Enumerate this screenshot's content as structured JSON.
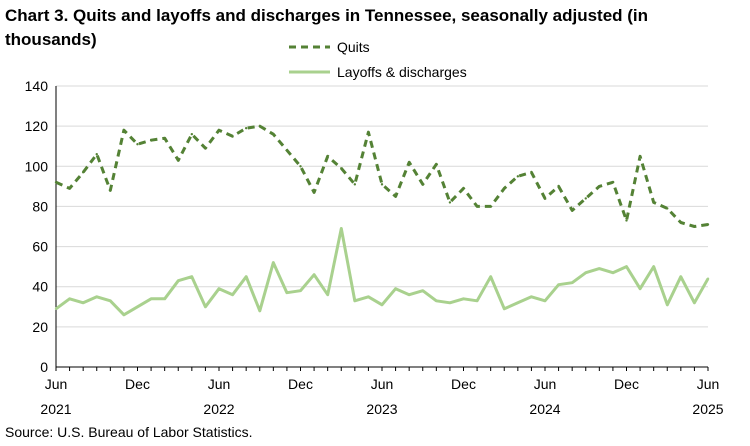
{
  "title": "Chart 3. Quits and layoffs and discharges in Tennessee, seasonally adjusted (in thousands)",
  "source": "Source: U.S. Bureau of Labor Statistics.",
  "chart_data": {
    "type": "line",
    "title": "Chart 3. Quits and layoffs and discharges in Tennessee, seasonally adjusted (in thousands)",
    "xlabel": "",
    "ylabel": "",
    "ylim": [
      0,
      140
    ],
    "yticks": [
      "0",
      "20",
      "40",
      "60",
      "80",
      "100",
      "120",
      "140"
    ],
    "grid": "horizontal",
    "legend": "top-center",
    "x_tick_labels": [
      {
        "month": "Jun",
        "year": "2021"
      },
      {
        "month": "Dec",
        "year": ""
      },
      {
        "month": "Jun",
        "year": "2022"
      },
      {
        "month": "Dec",
        "year": ""
      },
      {
        "month": "Jun",
        "year": "2023"
      },
      {
        "month": "Dec",
        "year": ""
      },
      {
        "month": "Jun",
        "year": "2024"
      },
      {
        "month": "Dec",
        "year": ""
      },
      {
        "month": "Jun",
        "year": "2025"
      }
    ],
    "x": [
      "2021-06",
      "2021-07",
      "2021-08",
      "2021-09",
      "2021-10",
      "2021-11",
      "2021-12",
      "2022-01",
      "2022-02",
      "2022-03",
      "2022-04",
      "2022-05",
      "2022-06",
      "2022-07",
      "2022-08",
      "2022-09",
      "2022-10",
      "2022-11",
      "2022-12",
      "2023-01",
      "2023-02",
      "2023-03",
      "2023-04",
      "2023-05",
      "2023-06",
      "2023-07",
      "2023-08",
      "2023-09",
      "2023-10",
      "2023-11",
      "2023-12",
      "2024-01",
      "2024-02",
      "2024-03",
      "2024-04",
      "2024-05",
      "2024-06",
      "2024-07",
      "2024-08",
      "2024-09",
      "2024-10",
      "2024-11",
      "2024-12",
      "2025-01",
      "2025-02",
      "2025-03",
      "2025-04",
      "2025-05",
      "2025-06"
    ],
    "series": [
      {
        "name": "Quits",
        "color": "#548235",
        "style": "dashed",
        "values": [
          92,
          89,
          97,
          106,
          88,
          118,
          111,
          113,
          114,
          103,
          116,
          109,
          118,
          115,
          119,
          120,
          116,
          108,
          100,
          87,
          105,
          99,
          91,
          117,
          91,
          85,
          102,
          91,
          101,
          82,
          89,
          80,
          80,
          89,
          95,
          97,
          84,
          90,
          78,
          84,
          90,
          92,
          73,
          105,
          82,
          79,
          72,
          70,
          71
        ]
      },
      {
        "name": "Layoffs & discharges",
        "color": "#a9d18e",
        "style": "solid",
        "values": [
          29,
          34,
          32,
          35,
          33,
          26,
          30,
          34,
          34,
          43,
          45,
          30,
          39,
          36,
          45,
          28,
          52,
          37,
          38,
          46,
          36,
          69,
          33,
          35,
          31,
          39,
          36,
          38,
          33,
          32,
          34,
          33,
          45,
          29,
          32,
          35,
          33,
          41,
          42,
          47,
          49,
          47,
          50,
          39,
          50,
          31,
          45,
          32,
          44
        ]
      }
    ]
  }
}
